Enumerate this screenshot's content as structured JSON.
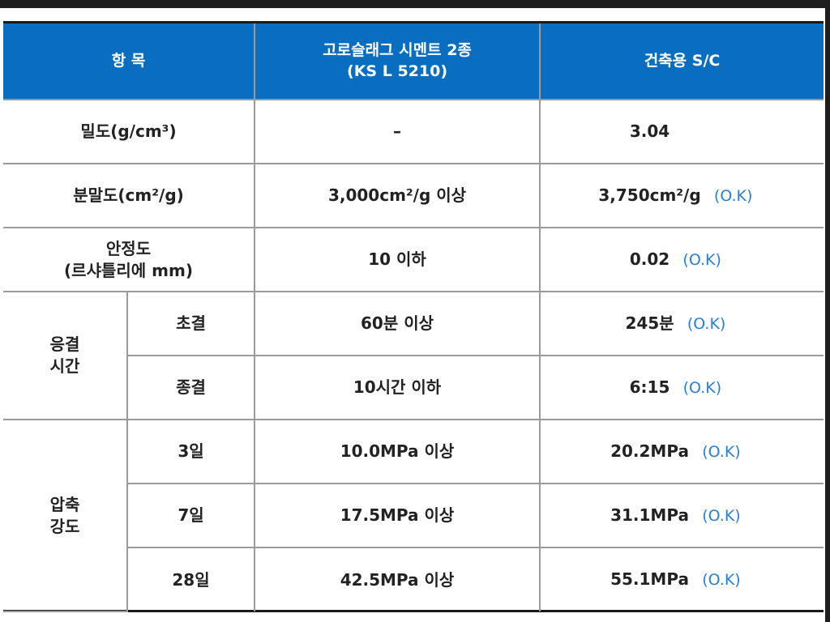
{
  "header": {
    "item": "항  목",
    "standard_line1": "고로슬래그 시멘트 2종",
    "standard_line2": "(KS L 5210)",
    "result": "건축용 S/C"
  },
  "rows": {
    "density": {
      "label": "밀도(g/cm³)",
      "standard": "–",
      "result": "3.04",
      "ok": ""
    },
    "fineness": {
      "label": "분말도(cm²/g)",
      "standard": "3,000cm²/g 이상",
      "result": "3,750cm²/g",
      "ok": "(O.K)"
    },
    "soundness": {
      "label_line1": "안정도",
      "label_line2": "(르샤틀리에 mm)",
      "standard": "10 이하",
      "result": "0.02",
      "ok": "(O.K)"
    },
    "setting": {
      "group_line1": "응결",
      "group_line2": "시간",
      "initial": {
        "label": "초결",
        "standard": "60분 이상",
        "result": "245분",
        "ok": "(O.K)"
      },
      "final": {
        "label": "종결",
        "standard": "10시간 이하",
        "result": "6:15",
        "ok": "(O.K)"
      }
    },
    "strength": {
      "group_line1": "압축",
      "group_line2": "강도",
      "d3": {
        "label": "3일",
        "standard": "10.0MPa 이상",
        "result": "20.2MPa",
        "ok": "(O.K)"
      },
      "d7": {
        "label": "7일",
        "standard": "17.5MPa 이상",
        "result": "31.1MPa",
        "ok": "(O.K)"
      },
      "d28": {
        "label": "28일",
        "standard": "42.5MPa 이상",
        "result": "55.1MPa",
        "ok": "(O.K)"
      }
    }
  },
  "colors": {
    "header_bg": "#0a6ec0",
    "header_text": "#ffffff",
    "ok_text": "#2b7fd0",
    "border": "#9a9a9a"
  }
}
